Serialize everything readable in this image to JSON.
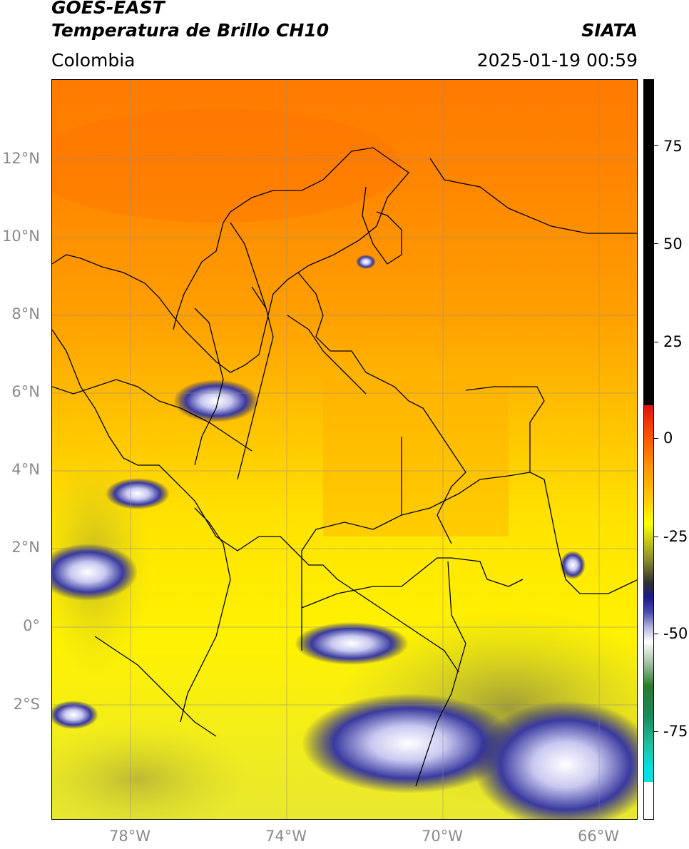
{
  "header": {
    "satellite": "GOES-EAST",
    "product": "Temperatura de Brillo CH10",
    "credit": "SIATA",
    "region": "Colombia",
    "timestamp": "2025-01-19 00:59"
  },
  "map": {
    "lat_ticks": [
      "12°N",
      "10°N",
      "8°N",
      "6°N",
      "4°N",
      "2°N",
      "0°",
      "2°S"
    ],
    "lon_ticks": [
      "78°W",
      "74°W",
      "70°W",
      "66°W"
    ]
  },
  "colorbar": {
    "ticks": [
      "75",
      "50",
      "25",
      "0",
      "-25",
      "-50",
      "-75"
    ],
    "colors": {
      "warm": "#000000",
      "zero": "#e01010",
      "orange": "#ff9000",
      "yellow": "#ffff00",
      "dark": "#1a1a8a",
      "white": "#ffffff",
      "green": "#2a7a2a",
      "cyan": "#00e0e0"
    }
  }
}
